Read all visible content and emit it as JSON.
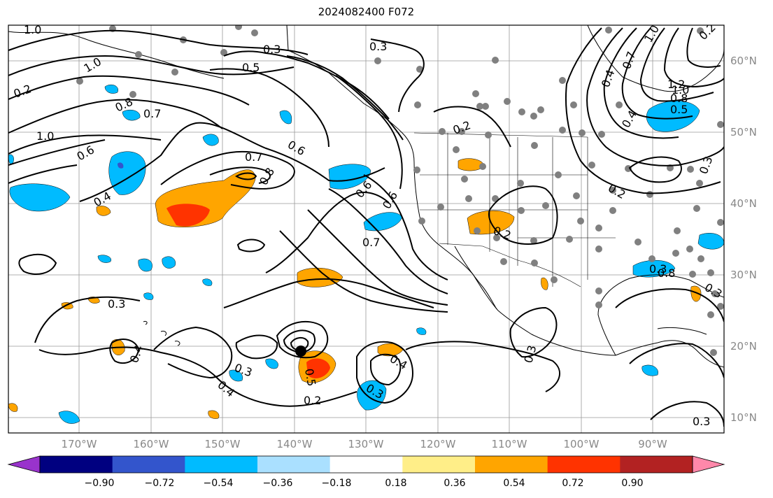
{
  "title": "2024082400 F072",
  "lon_labels": [
    "170°W",
    "160°W",
    "150°W",
    "140°W",
    "130°W",
    "120°W",
    "110°W",
    "100°W",
    "90°W"
  ],
  "lat_labels": [
    "60°N",
    "50°N",
    "40°N",
    "30°N",
    "20°N",
    "10°N"
  ],
  "colorbar": {
    "colors": [
      "#9933cc",
      "#000080",
      "#3355cc",
      "#00bbff",
      "#aae0ff",
      "#ffffff",
      "#ffee88",
      "#ffa500",
      "#ff3300",
      "#b22222",
      "#ff88aa"
    ],
    "tick_labels": [
      "−0.90",
      "−0.72",
      "−0.54",
      "−0.36",
      "−0.18",
      "0.18",
      "0.36",
      "0.54",
      "0.72",
      "0.90"
    ]
  },
  "contour_labels": [
    "1.0",
    "1.0",
    "0.3",
    "0.5",
    "0.3",
    "1.0",
    "0.8",
    "0.7",
    "0.2",
    "1.0",
    "0.6",
    "0.6",
    "0.7",
    "0.8",
    "0.6",
    "0.4",
    "0.6",
    "0.7",
    "0.2",
    "0.4",
    "0.7",
    "0.2",
    "0.4",
    "0.8",
    "0.5",
    "0.2",
    "1.2",
    "0.3",
    "0.3",
    "0.4",
    "0.5",
    "0.3",
    "0.4",
    "0.2",
    "0.3",
    "0.4",
    "0.3",
    "0.3",
    "0.8",
    "0.3",
    "0.3",
    "0.2",
    "1.0"
  ]
}
